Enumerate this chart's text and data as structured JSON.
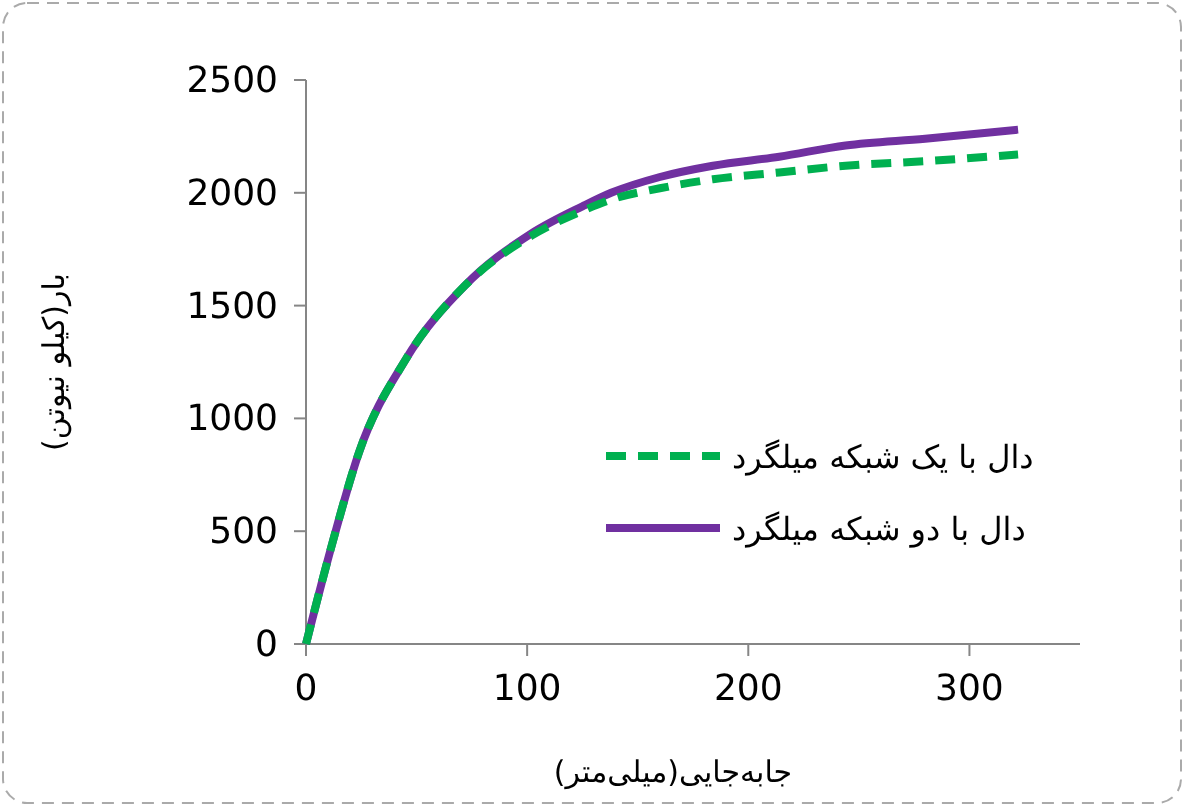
{
  "chart_data": {
    "type": "line",
    "xlabel": "جابه‌جایی(میلی‌متر)",
    "ylabel": "بار(کیلو نیوتن)",
    "xlim": [
      0,
      350
    ],
    "xticks": [
      0,
      100,
      200,
      300
    ],
    "ylim": [
      0,
      2500
    ],
    "yticks": [
      0,
      500,
      1000,
      1500,
      2000,
      2500
    ],
    "grid": false,
    "legend": "right",
    "marker": "none",
    "series": [
      {
        "name": "دال با یک شبکه میلگرد",
        "color": "#00b050",
        "line_style": "dashed",
        "x": [
          0,
          12,
          24,
          45,
          72,
          102,
          125,
          138,
          160,
          184,
          214,
          244,
          280,
          322
        ],
        "values": [
          0,
          450,
          850,
          1260,
          1590,
          1810,
          1920,
          1970,
          2020,
          2060,
          2090,
          2120,
          2140,
          2170
        ]
      },
      {
        "name": "دال با دو شبکه میلگرد",
        "color": "#7030a0",
        "line_style": "solid",
        "x": [
          0,
          12,
          24,
          45,
          72,
          102,
          125,
          138,
          160,
          184,
          214,
          244,
          280,
          322
        ],
        "values": [
          0,
          450,
          850,
          1260,
          1590,
          1820,
          1940,
          2000,
          2070,
          2120,
          2160,
          2210,
          2240,
          2280
        ]
      }
    ]
  }
}
